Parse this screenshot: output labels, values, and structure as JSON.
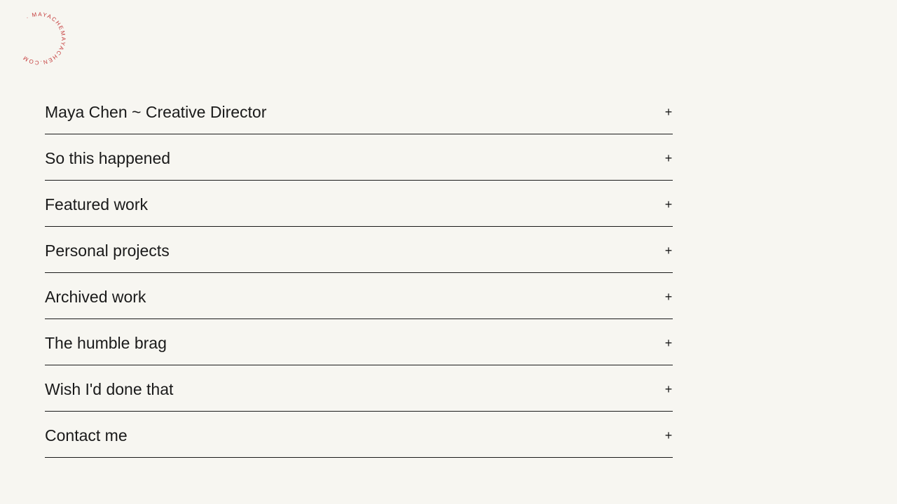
{
  "logo": {
    "circular_text": "· MAYACHEMAYACHEN.COM",
    "color": "#c43a3a"
  },
  "accordion": {
    "expand_icon": "plus-icon",
    "expand_glyph": "+",
    "items": [
      {
        "label": "Maya Chen ~ Creative Director"
      },
      {
        "label": "So this happened"
      },
      {
        "label": "Featured work"
      },
      {
        "label": "Personal projects"
      },
      {
        "label": "Archived work"
      },
      {
        "label": "The humble brag"
      },
      {
        "label": "Wish I'd done that"
      },
      {
        "label": "Contact me"
      }
    ]
  }
}
